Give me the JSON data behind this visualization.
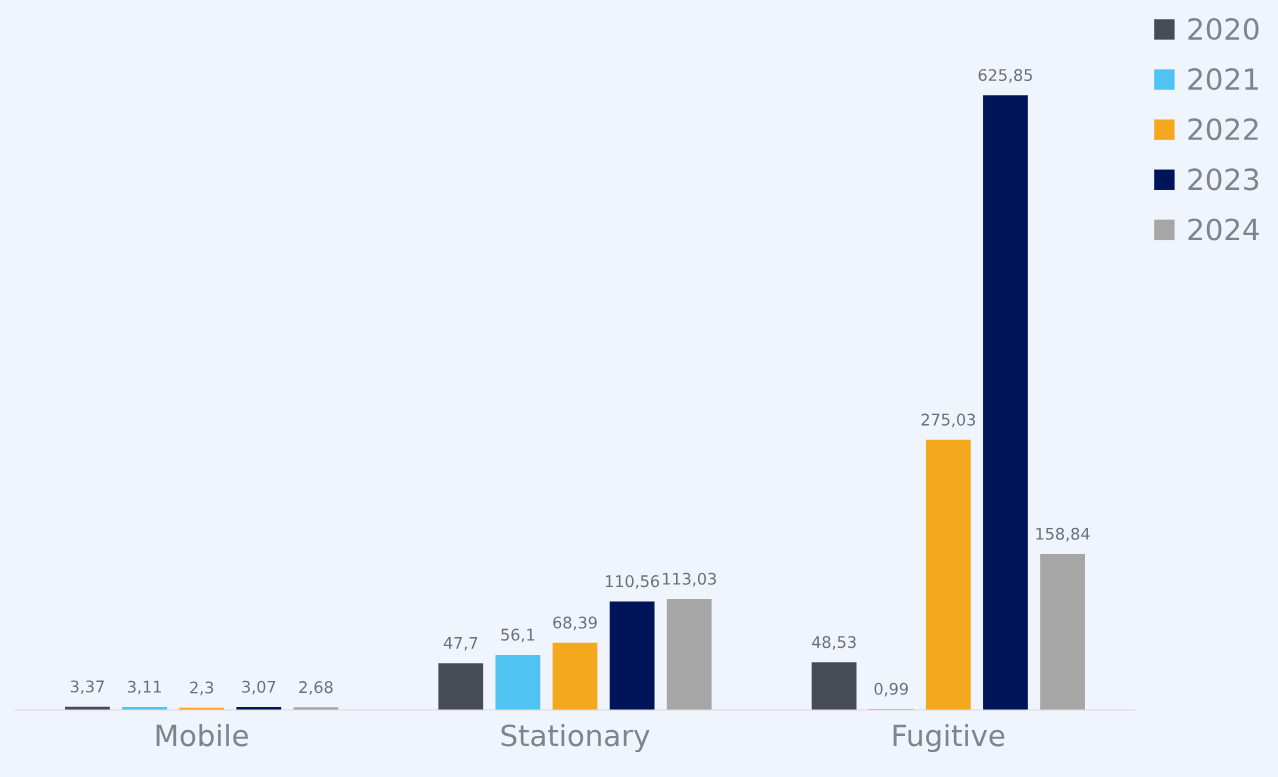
{
  "chart_data": {
    "type": "bar",
    "categories": [
      "Mobile",
      "Stationary",
      "Fugitive"
    ],
    "series": [
      {
        "name": "2020",
        "color": "#474b55",
        "values": [
          3.37,
          47.7,
          48.53
        ],
        "value_labels": [
          "3,37",
          "47,7",
          "48,53"
        ]
      },
      {
        "name": "2021",
        "color": "#4fc3f1",
        "values": [
          3.11,
          56.1,
          0.99
        ],
        "value_labels": [
          "3,11",
          "56,1",
          "0,99"
        ]
      },
      {
        "name": "2022",
        "color": "#f4a81d",
        "values": [
          2.3,
          68.39,
          275.03
        ],
        "value_labels": [
          "2,3",
          "68,39",
          "275,03"
        ]
      },
      {
        "name": "2023",
        "color": "#00145a",
        "values": [
          3.07,
          110.56,
          625.85
        ],
        "value_labels": [
          "3,07",
          "110,56",
          "625,85"
        ]
      },
      {
        "name": "2024",
        "color": "#a6a6a6",
        "values": [
          2.68,
          113.03,
          158.84
        ],
        "value_labels": [
          "2,68",
          "113,03",
          "158,84"
        ]
      }
    ],
    "legend": "top right",
    "grid": false,
    "tick_labels": "x"
  }
}
